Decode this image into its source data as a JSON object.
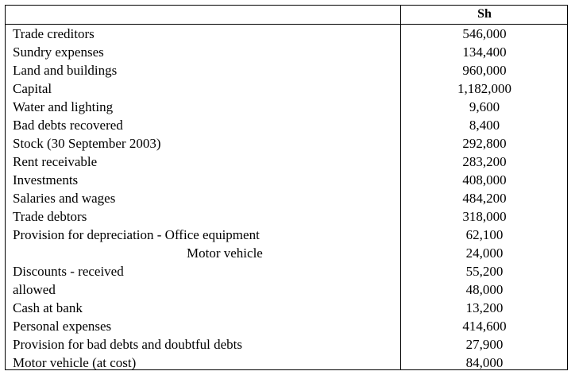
{
  "table": {
    "header": {
      "amount": "Sh"
    },
    "rows": [
      [
        "Trade creditors",
        "546,000"
      ],
      [
        "Sundry expenses",
        "134,400"
      ],
      [
        "Land and buildings",
        "960,000"
      ],
      [
        "Capital",
        "1,182,000"
      ],
      [
        "Water and lighting",
        "9,600"
      ],
      [
        "Bad debts recovered",
        "8,400"
      ],
      [
        "Stock (30 September 2003)",
        "292,800"
      ],
      [
        "Rent receivable",
        "283,200"
      ],
      [
        "Investments",
        "408,000"
      ],
      [
        "Salaries and wages",
        "484,200"
      ],
      [
        "Trade debtors",
        "318,000"
      ],
      [
        "Provision for depreciation - Office equipment",
        "62,100"
      ],
      [
        "Motor vehicle",
        "24,000"
      ],
      [
        "Discounts - received",
        "55,200"
      ],
      [
        "allowed",
        "48,000"
      ],
      [
        "Cash at bank",
        "13,200"
      ],
      [
        "Personal expenses",
        "414,600"
      ],
      [
        "Provision for bad debts and doubtful debts",
        "27,900"
      ],
      [
        "Motor vehicle (at cost)",
        "84,000"
      ]
    ]
  }
}
